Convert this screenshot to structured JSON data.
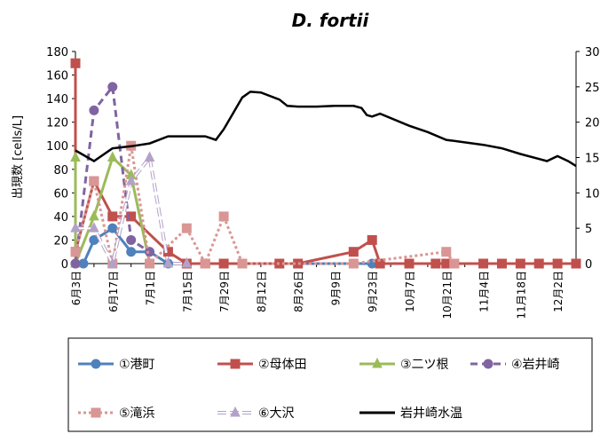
{
  "chart_data": {
    "type": "line",
    "title": "D. fortii",
    "ylabel": "出現数 [cells/L]",
    "ylim": [
      0,
      180
    ],
    "y2lim": [
      0,
      30
    ],
    "y_ticks": [
      0,
      20,
      40,
      60,
      80,
      100,
      120,
      140,
      160,
      180
    ],
    "y2_ticks": [
      0,
      5,
      10,
      15,
      20,
      25,
      30
    ],
    "x_ticks": [
      "6月3日",
      "6月17日",
      "7月1日",
      "7月15日",
      "7月29日",
      "8月12日",
      "8月26日",
      "9月9日",
      "9月23日",
      "10月7日",
      "10月21日",
      "11月4日",
      "11月18日",
      "12月2日"
    ],
    "x_start": "6月3日",
    "grid": false,
    "legend_position": "bottom",
    "series": [
      {
        "name": "①港町",
        "color": "#4f81bd",
        "dash": "",
        "marker": "circle",
        "marker_fill": "#4f81bd",
        "axis": "left",
        "x": [
          "6月3日",
          "6月6日",
          "6月10日",
          "6月17日",
          "6月24日",
          "7月1日",
          "7月8日",
          "7月15日",
          "7月22日",
          "7月29日",
          "8月5日",
          "8月19日",
          "8月26日",
          "9月16日",
          "9月23日",
          "9月26日",
          "10月7日",
          "10月17日",
          "10月21日",
          "10月24日",
          "11月4日",
          "11月11日",
          "11月18日",
          "11月25日",
          "12月2日",
          "12月9日"
        ],
        "values": [
          0,
          0,
          20,
          30,
          10,
          10,
          0,
          0,
          0,
          0,
          0,
          0,
          0,
          0,
          0,
          0,
          0,
          0,
          0,
          0,
          0,
          0,
          0,
          0,
          0,
          0
        ]
      },
      {
        "name": "②母体田",
        "color": "#c0504d",
        "dash": "",
        "marker": "square",
        "marker_fill": "#c0504d",
        "axis": "left",
        "x": [
          "6月3日",
          "6月3日",
          "6月10日",
          "6月17日",
          "6月24日",
          "7月8日",
          "7月15日",
          "7月22日",
          "7月29日",
          "8月5日",
          "8月19日",
          "8月26日",
          "9月16日",
          "9月23日",
          "9月26日",
          "10月7日",
          "10月17日",
          "10月21日",
          "10月24日",
          "11月4日",
          "11月11日",
          "11月18日",
          "11月25日",
          "12月2日",
          "12月9日"
        ],
        "values": [
          170,
          10,
          70,
          40,
          40,
          10,
          0,
          0,
          0,
          0,
          0,
          0,
          10,
          20,
          0,
          0,
          0,
          0,
          0,
          0,
          0,
          0,
          0,
          0,
          0
        ]
      },
      {
        "name": "③二ツ根",
        "color": "#9bbb59",
        "dash": "",
        "marker": "triangle",
        "marker_fill": "#9bbb59",
        "axis": "left",
        "x": [
          "6月3日",
          "6月3日",
          "6月10日",
          "6月17日",
          "6月24日",
          "7月1日"
        ],
        "values": [
          90,
          0,
          40,
          90,
          75,
          0
        ]
      },
      {
        "name": "④岩井崎",
        "color": "#8064a2",
        "dash": "8,5",
        "marker": "circle",
        "marker_fill": "#8064a2",
        "axis": "left",
        "x": [
          "6月3日",
          "6月10日",
          "6月17日",
          "6月24日",
          "7月1日"
        ],
        "values": [
          0,
          130,
          150,
          20,
          10
        ]
      },
      {
        "name": "⑤滝浜",
        "color": "#d99694",
        "dash": "3,3",
        "marker": "square",
        "marker_fill": "#d99694",
        "axis": "left",
        "x": [
          "6月3日",
          "6月10日",
          "6月17日",
          "6月24日",
          "7月1日",
          "7月15日",
          "7月22日",
          "7月29日",
          "8月5日",
          "9月16日",
          "10月21日",
          "10月24日"
        ],
        "values": [
          10,
          70,
          0,
          100,
          0,
          30,
          0,
          40,
          0,
          0,
          10,
          0
        ]
      },
      {
        "name": "⑥大沢",
        "color": "#b3a2c7",
        "dash": "10,4",
        "marker": "triangle",
        "marker_fill": "#b3a2c7",
        "axis": "left",
        "hollow_line": true,
        "x": [
          "6月3日",
          "6月10日",
          "6月17日",
          "6月24日",
          "7月1日",
          "7月8日",
          "7月15日"
        ],
        "values": [
          30,
          30,
          0,
          70,
          90,
          0,
          0
        ]
      },
      {
        "name": "岩井崎水温",
        "color": "#000000",
        "dash": "",
        "marker": "none",
        "axis": "right",
        "x": [
          "6月3日",
          "6月10日",
          "6月17日",
          "6月24日",
          "7月1日",
          "7月8日",
          "7月15日",
          "7月22日",
          "7月26日",
          "7月29日",
          "8月5日",
          "8月8日",
          "8月12日",
          "8月19日",
          "8月22日",
          "8月26日",
          "9月2日",
          "9月9日",
          "9月16日",
          "9月19日",
          "9月21日",
          "9月23日",
          "9月26日",
          "10月7日",
          "10月14日",
          "10月21日",
          "11月4日",
          "11月11日",
          "11月18日",
          "11月25日",
          "11月28日",
          "12月2日",
          "12月6日",
          "12月9日"
        ],
        "values": [
          16,
          14.5,
          16.3,
          16.6,
          17,
          18,
          18,
          18,
          17.5,
          19,
          23.5,
          24.3,
          24.2,
          23.2,
          22.3,
          22.2,
          22.2,
          22.3,
          22.3,
          22,
          21,
          20.8,
          21.2,
          19.5,
          18.6,
          17.5,
          16.8,
          16.3,
          15.5,
          14.8,
          14.5,
          15.2,
          14.5,
          13.8
        ]
      }
    ]
  }
}
